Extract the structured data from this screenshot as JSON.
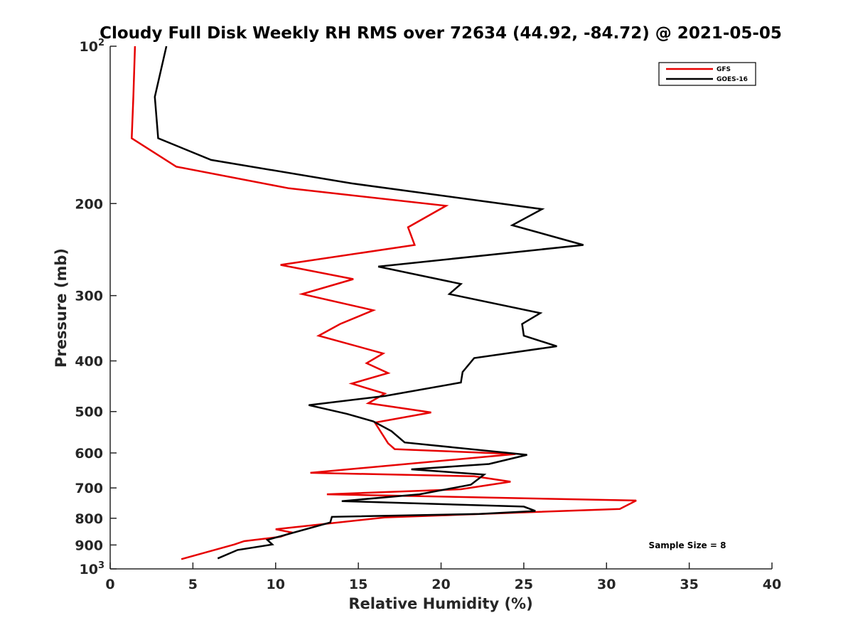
{
  "chart_data": {
    "type": "line",
    "title": "Cloudy Full Disk Weekly RH RMS over 72634 (44.92, -84.72) @ 2021-05-05",
    "xlabel": "Relative Humidity (%)",
    "ylabel": "Pressure (mb)",
    "xlim": [
      0,
      40
    ],
    "ylim": [
      100,
      1000
    ],
    "y_scale": "log",
    "y_reversed": true,
    "x_ticks": [
      "0",
      "5",
      "10",
      "15",
      "20",
      "25",
      "30",
      "35",
      "40"
    ],
    "y_ticks": [
      {
        "value": 100,
        "label": "10",
        "sup": "2"
      },
      {
        "value": 200,
        "label": "200",
        "sup": ""
      },
      {
        "value": 300,
        "label": "300",
        "sup": ""
      },
      {
        "value": 400,
        "label": "400",
        "sup": ""
      },
      {
        "value": 500,
        "label": "500",
        "sup": ""
      },
      {
        "value": 600,
        "label": "600",
        "sup": ""
      },
      {
        "value": 700,
        "label": "700",
        "sup": ""
      },
      {
        "value": 800,
        "label": "800",
        "sup": ""
      },
      {
        "value": 900,
        "label": "900",
        "sup": ""
      },
      {
        "value": 1000,
        "label": "10",
        "sup": "3"
      }
    ],
    "grid": false,
    "legend_position": "top-right",
    "annotation": "Sample Size = 8",
    "series": [
      {
        "name": "GFS",
        "color": "#e60000",
        "points": [
          [
            1.5,
            100
          ],
          [
            1.4,
            125
          ],
          [
            1.3,
            150
          ],
          [
            4.0,
            170
          ],
          [
            10.8,
            187
          ],
          [
            20.3,
            202
          ],
          [
            18.0,
            222
          ],
          [
            18.4,
            240
          ],
          [
            10.3,
            262
          ],
          [
            14.7,
            279
          ],
          [
            11.6,
            298
          ],
          [
            15.9,
            320
          ],
          [
            13.9,
            340
          ],
          [
            12.6,
            358
          ],
          [
            16.5,
            387
          ],
          [
            15.5,
            404
          ],
          [
            16.8,
            422
          ],
          [
            14.6,
            442
          ],
          [
            16.6,
            462
          ],
          [
            15.6,
            482
          ],
          [
            19.4,
            502
          ],
          [
            16.0,
            525
          ],
          [
            16.8,
            575
          ],
          [
            17.2,
            590
          ],
          [
            24.5,
            603
          ],
          [
            12.1,
            655
          ],
          [
            22.0,
            665
          ],
          [
            24.2,
            681
          ],
          [
            21.2,
            704
          ],
          [
            13.1,
            720
          ],
          [
            31.8,
            740
          ],
          [
            30.8,
            768
          ],
          [
            16.6,
            797
          ],
          [
            10.0,
            840
          ],
          [
            11.0,
            852
          ],
          [
            10.3,
            868
          ],
          [
            8.1,
            885
          ],
          [
            7.5,
            898
          ],
          [
            4.3,
            958
          ]
        ]
      },
      {
        "name": "GOES-16",
        "color": "#000000",
        "points": [
          [
            3.4,
            100
          ],
          [
            2.7,
            125
          ],
          [
            2.9,
            150
          ],
          [
            6.1,
            165
          ],
          [
            14.6,
            183
          ],
          [
            26.1,
            205
          ],
          [
            24.3,
            220
          ],
          [
            28.6,
            240
          ],
          [
            16.2,
            264
          ],
          [
            21.2,
            285
          ],
          [
            20.5,
            298
          ],
          [
            26.0,
            324
          ],
          [
            24.9,
            340
          ],
          [
            25.0,
            358
          ],
          [
            27.0,
            375
          ],
          [
            22.0,
            395
          ],
          [
            21.3,
            420
          ],
          [
            21.2,
            440
          ],
          [
            16.6,
            467
          ],
          [
            12.0,
            486
          ],
          [
            14.3,
            505
          ],
          [
            15.9,
            522
          ],
          [
            17.0,
            545
          ],
          [
            17.8,
            573
          ],
          [
            25.2,
            605
          ],
          [
            22.9,
            630
          ],
          [
            18.2,
            645
          ],
          [
            22.6,
            660
          ],
          [
            21.8,
            690
          ],
          [
            18.7,
            720
          ],
          [
            14.0,
            742
          ],
          [
            25.0,
            760
          ],
          [
            25.7,
            775
          ],
          [
            22.3,
            785
          ],
          [
            13.4,
            795
          ],
          [
            13.3,
            815
          ],
          [
            9.5,
            880
          ],
          [
            9.8,
            898
          ],
          [
            7.7,
            920
          ],
          [
            6.5,
            955
          ]
        ]
      }
    ]
  }
}
